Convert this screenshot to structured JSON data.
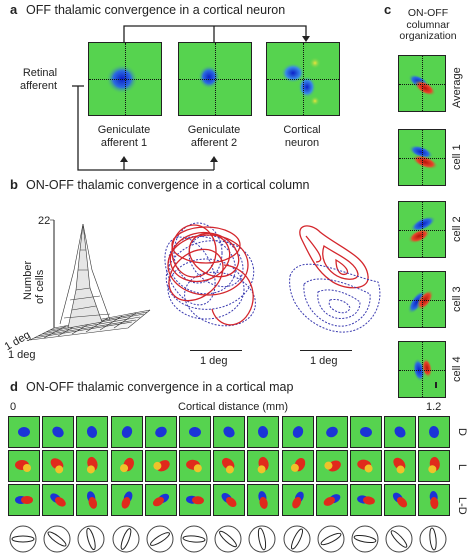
{
  "panel_a": {
    "letter": "a",
    "title": "OFF thalamic convergence in a cortical neuron",
    "retinal_label_1": "Retinal",
    "retinal_label_2": "afferent",
    "cells": [
      {
        "line1": "Geniculate",
        "line2": "afferent 1"
      },
      {
        "line1": "Geniculate",
        "line2": "afferent 2"
      },
      {
        "line1": "Cortical",
        "line2": "neuron"
      }
    ]
  },
  "panel_b": {
    "letter": "b",
    "title": "ON-OFF thalamic convergence in a cortical column",
    "z_max": "22",
    "z_label_1": "Number",
    "z_label_2": "of cells",
    "axis_deg_1": "1 deg",
    "axis_deg_2": "1 deg",
    "scale_1": "1 deg",
    "scale_2": "1 deg"
  },
  "panel_c": {
    "letter": "c",
    "title_1": "ON-OFF",
    "title_2": "columnar",
    "title_3": "organization",
    "rows": [
      "Average",
      "cell 1",
      "cell 2",
      "cell 3",
      "cell 4"
    ]
  },
  "panel_d": {
    "letter": "d",
    "title": "ON-OFF thalamic convergence in a cortical map",
    "axis_start": "0",
    "axis_label": "Cortical distance (mm)",
    "axis_end": "1.2",
    "rows": [
      "D",
      "L",
      "L-D"
    ],
    "n_columns": 13
  },
  "colors": {
    "background_green": "#56d34f",
    "off_blue": "#1b34d6",
    "on_red": "#e02a1c",
    "contour_red": "#d4262c",
    "contour_blue": "#3b3bb0"
  }
}
